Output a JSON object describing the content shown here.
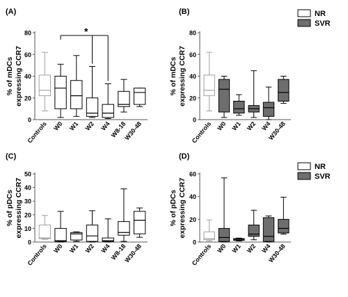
{
  "chart_data": [
    {
      "panel": "(A)",
      "type": "box",
      "ylabel": "% of mDCs\nexpressing CCR7",
      "ylim": [
        0,
        80
      ],
      "yticks": [
        0,
        20,
        40,
        60,
        80
      ],
      "categories": [
        "Controls",
        "W0",
        "W1",
        "W2",
        "W4",
        "W8-18",
        "W30-48"
      ],
      "groups": [
        "control",
        "NR",
        "NR",
        "NR",
        "NR",
        "NR",
        "NR"
      ],
      "boxes": [
        {
          "min": 8,
          "q1": 22,
          "median": 27,
          "q3": 41,
          "max": 62
        },
        {
          "min": 2,
          "q1": 10,
          "median": 29,
          "q3": 40,
          "max": 51
        },
        {
          "min": 3,
          "q1": 10,
          "median": 22,
          "q3": 36,
          "max": 59
        },
        {
          "min": 2,
          "q1": 3,
          "median": 6,
          "q3": 20,
          "max": 49
        },
        {
          "min": 1,
          "q1": 2,
          "median": 6,
          "q3": 14,
          "max": 33
        },
        {
          "min": 7,
          "q1": 12,
          "median": 14,
          "q3": 26,
          "max": 37
        },
        {
          "min": 12,
          "q1": 14,
          "median": 25,
          "q3": 29,
          "max": 29
        }
      ],
      "significance": {
        "label": "*",
        "from": "W0",
        "to": [
          "W2",
          "W4"
        ]
      }
    },
    {
      "panel": "(B)",
      "type": "box",
      "ylabel": "% of mDCs\nexpressing CCR7",
      "ylim": [
        0,
        80
      ],
      "yticks": [
        0,
        20,
        40,
        60,
        80
      ],
      "categories": [
        "Controls",
        "W0",
        "W1",
        "W2",
        "W4",
        "W30-48"
      ],
      "groups": [
        "control",
        "SVR",
        "SVR",
        "SVR",
        "SVR",
        "SVR"
      ],
      "boxes": [
        {
          "min": 8,
          "q1": 22,
          "median": 27,
          "q3": 41,
          "max": 62
        },
        {
          "min": 2,
          "q1": 7,
          "median": 28,
          "q3": 37,
          "max": 40
        },
        {
          "min": 4,
          "q1": 6,
          "median": 10,
          "q3": 17,
          "max": 23
        },
        {
          "min": 2,
          "q1": 7,
          "median": 10,
          "q3": 13,
          "max": 45
        },
        {
          "min": 0,
          "q1": 3,
          "median": 11,
          "q3": 16,
          "max": 30
        },
        {
          "min": 15,
          "q1": 17,
          "median": 25,
          "q3": 37,
          "max": 40
        }
      ]
    },
    {
      "panel": "(C)",
      "type": "box",
      "ylabel": "% of pDCs\nexpressing CCR7",
      "ylim": [
        0,
        50
      ],
      "yticks": [
        0,
        10,
        20,
        30,
        40,
        50
      ],
      "categories": [
        "Controls",
        "W0",
        "W1",
        "W2",
        "W4",
        "W8-18",
        "W30-48"
      ],
      "groups": [
        "control",
        "NR",
        "NR",
        "NR",
        "NR",
        "NR",
        "NR"
      ],
      "boxes": [
        {
          "min": 2,
          "q1": 2.5,
          "median": 3,
          "q3": 12.5,
          "max": 19.5
        },
        {
          "min": 0,
          "q1": 0.5,
          "median": 1,
          "q3": 10,
          "max": 22.5
        },
        {
          "min": 0.5,
          "q1": 1.5,
          "median": 6,
          "q3": 7,
          "max": 7.5
        },
        {
          "min": 0,
          "q1": 0.5,
          "median": 4.5,
          "q3": 12.5,
          "max": 23
        },
        {
          "min": 0,
          "q1": 0.5,
          "median": 1,
          "q3": 3,
          "max": 17
        },
        {
          "min": 0.5,
          "q1": 5,
          "median": 7,
          "q3": 15,
          "max": 39
        },
        {
          "min": 3.5,
          "q1": 6,
          "median": 16,
          "q3": 22.5,
          "max": 25
        }
      ]
    },
    {
      "panel": "(D)",
      "type": "box",
      "ylabel": "% of pDCs\nexpressing CCR7",
      "ylim": [
        0,
        60
      ],
      "yticks": [
        0,
        20,
        40,
        60
      ],
      "categories": [
        "Controls",
        "W0",
        "W1",
        "W2",
        "W4",
        "W30-48"
      ],
      "groups": [
        "control",
        "SVR",
        "SVR",
        "SVR",
        "SVR",
        "SVR"
      ],
      "boxes": [
        {
          "min": 1,
          "q1": 2,
          "median": 3,
          "q3": 9,
          "max": 19.5
        },
        {
          "min": 0,
          "q1": 0.5,
          "median": 4,
          "q3": 12,
          "max": 56.5
        },
        {
          "min": 1,
          "q1": 1.5,
          "median": 2.5,
          "q3": 3,
          "max": 3.5
        },
        {
          "min": 2,
          "q1": 5,
          "median": 7,
          "q3": 15,
          "max": 28
        },
        {
          "min": 0,
          "q1": 0.5,
          "median": 5,
          "q3": 21.5,
          "max": 23
        },
        {
          "min": 7,
          "q1": 8,
          "median": 12,
          "q3": 20,
          "max": 39.5
        }
      ]
    }
  ],
  "legend": {
    "position": "top-right",
    "entries": [
      {
        "label": "NR",
        "fill": "#ffffff"
      },
      {
        "label": "SVR",
        "fill": "#6e6e6e"
      }
    ]
  },
  "colors": {
    "control_stroke": "#a0a0a0",
    "nr_fill": "#ffffff",
    "svr_fill": "#6e6e6e",
    "stroke": "#000000",
    "axis": "#555555"
  }
}
